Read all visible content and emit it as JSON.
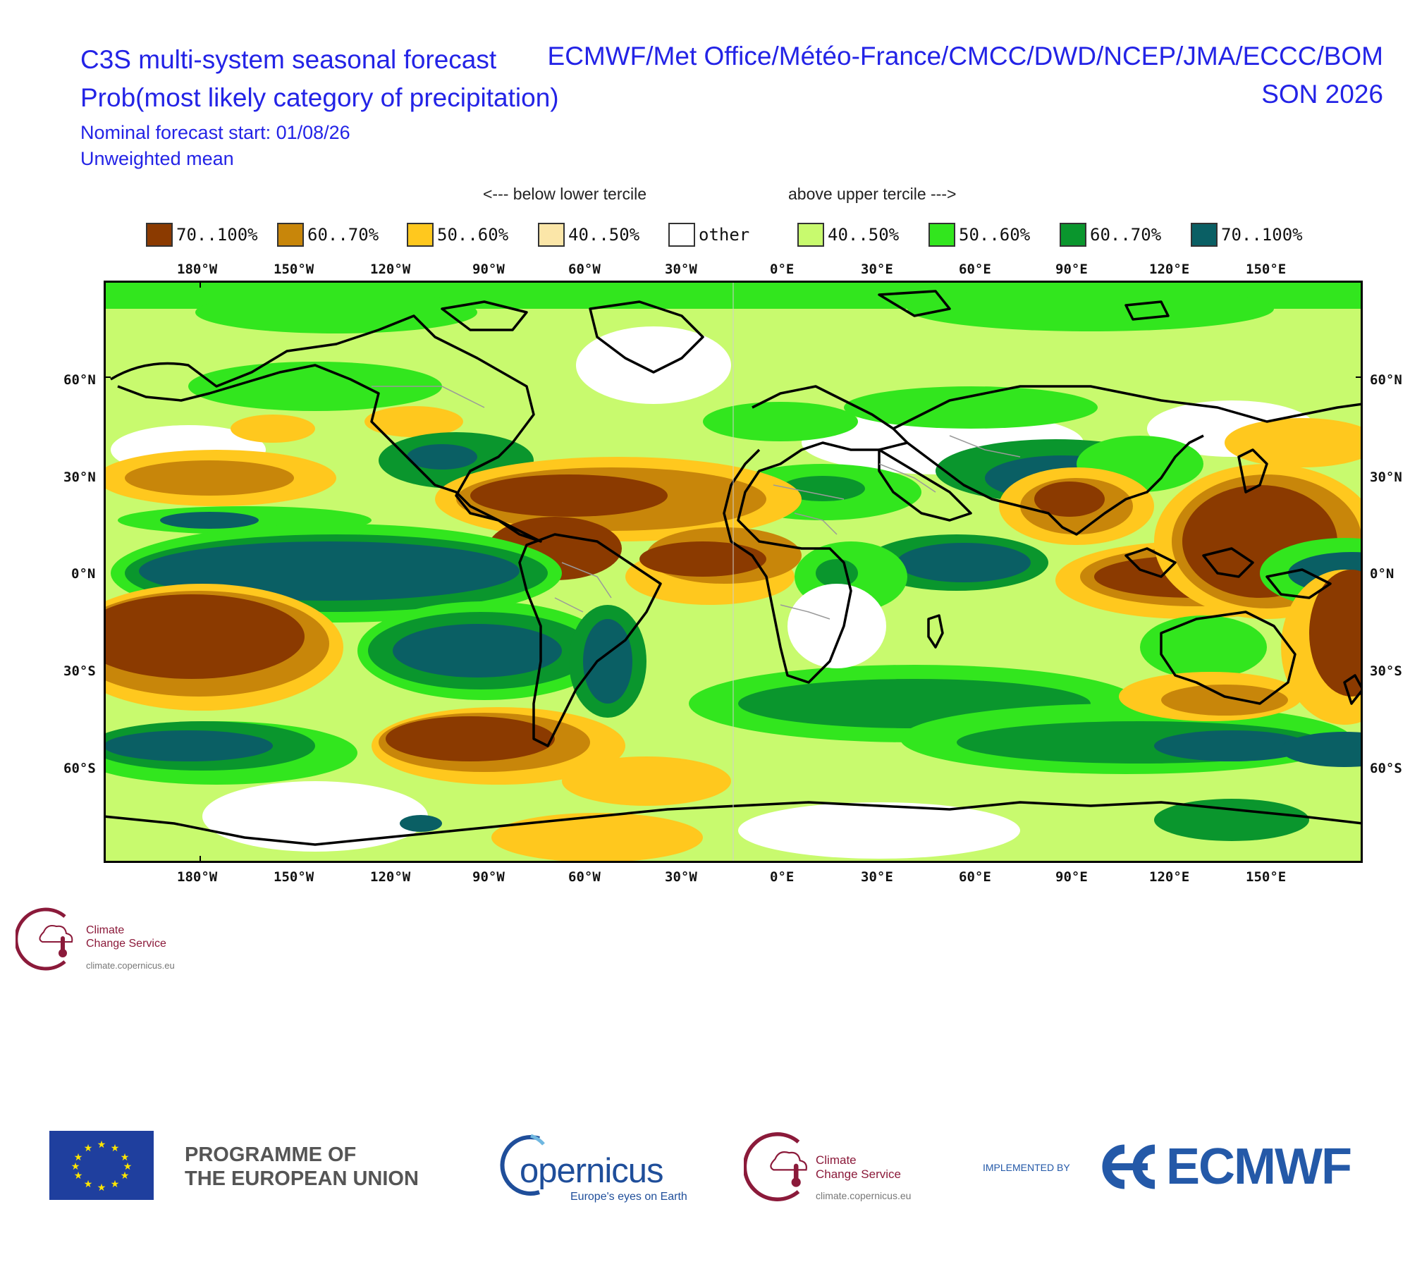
{
  "header": {
    "title_left": "C3S multi-system seasonal forecast",
    "title_right": "ECMWF/Met Office/Météo-France/CMCC/DWD/NCEP/JMA/ECCC/BOM",
    "subtitle_left": "Prob(most likely category of precipitation)",
    "subtitle_right": "SON 2026",
    "start_line": "Nominal forecast start: 01/08/26",
    "mean_line": "Unweighted mean"
  },
  "legend": {
    "below_caption": "<--- below lower tercile",
    "above_caption": "above upper tercile --->",
    "items": [
      {
        "label": "70..100%",
        "color": "#8b3a00"
      },
      {
        "label": "60..70%",
        "color": "#c8860a"
      },
      {
        "label": "50..60%",
        "color": "#ffc81e"
      },
      {
        "label": "40..50%",
        "color": "#fbe6a8"
      },
      {
        "label": "other",
        "color": "#ffffff"
      },
      {
        "label": "40..50%",
        "color": "#c8fa6e"
      },
      {
        "label": "50..60%",
        "color": "#32e61e"
      },
      {
        "label": "60..70%",
        "color": "#0a962d"
      },
      {
        "label": "70..100%",
        "color": "#0a5f64"
      }
    ]
  },
  "axes": {
    "lon_labels": [
      "180°W",
      "150°W",
      "120°W",
      "90°W",
      "60°W",
      "30°W",
      "0°E",
      "30°E",
      "60°E",
      "90°E",
      "120°E",
      "150°E"
    ],
    "lat_labels_left": [
      "60°N",
      "30°N",
      "0°N",
      "30°S",
      "60°S"
    ],
    "lat_labels_right": [
      "60°N",
      "30°N",
      "0°N",
      "30°S",
      "60°S"
    ]
  },
  "logos": {
    "c3s_small": {
      "line1": "Climate",
      "line2": "Change Service",
      "url": "climate.copernicus.eu"
    },
    "eu": {
      "line1": "PROGRAMME OF",
      "line2": "THE EUROPEAN UNION"
    },
    "copernicus": {
      "word": "opernicus",
      "tagline": "Europe's eyes on Earth"
    },
    "c3s": {
      "line1": "Climate",
      "line2": "Change Service",
      "url": "climate.copernicus.eu"
    },
    "ecmwf": {
      "implemented_by": "IMPLEMENTED BY",
      "word": "ECMWF"
    }
  },
  "colors": {
    "title_blue": "#2323e6",
    "ecmwf_blue": "#2459a8",
    "copernicus_blue": "#1f4e9a",
    "c3s_red": "#8b1a3a"
  }
}
